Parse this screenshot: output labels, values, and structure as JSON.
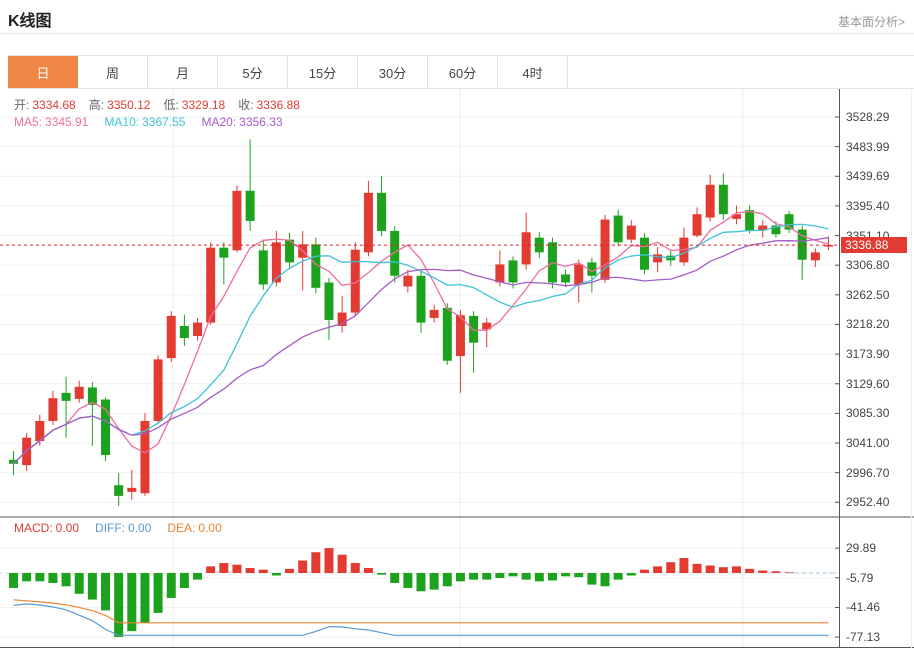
{
  "header": {
    "title": "K线图",
    "analysis_link": "基本面分析>"
  },
  "tabs": {
    "items": [
      {
        "label": "日",
        "active": true
      },
      {
        "label": "周",
        "active": false
      },
      {
        "label": "月",
        "active": false
      },
      {
        "label": "5分",
        "active": false
      },
      {
        "label": "15分",
        "active": false
      },
      {
        "label": "30分",
        "active": false
      },
      {
        "label": "60分",
        "active": false
      },
      {
        "label": "4时",
        "active": false
      }
    ]
  },
  "quote_bar": {
    "open_label": "开:",
    "open": "3334.68",
    "high_label": "高:",
    "high": "3350.12",
    "low_label": "低:",
    "low": "3329.18",
    "close_label": "收:",
    "close": "3336.88"
  },
  "ma_bar": {
    "ma5_label": "MA5:",
    "ma5": "3345.91",
    "ma10_label": "MA10:",
    "ma10": "3367.55",
    "ma20_label": "MA20:",
    "ma20": "3356.33"
  },
  "macd_bar": {
    "macd_label": "MACD:",
    "macd": "0.00",
    "diff_label": "DIFF:",
    "diff": "0.00",
    "dea_label": "DEA:",
    "dea": "0.00"
  },
  "colors": {
    "up": "#e23b32",
    "down": "#1ca21c",
    "ma5": "#ee6e9e",
    "ma10": "#3fc3d8",
    "ma20": "#a55cc5",
    "diff": "#5a9ad2",
    "dea": "#ef8432",
    "accent_tab": "#ee8745",
    "current_price_line": "#e02020",
    "grid": "#f1f1f1",
    "axis": "#555"
  },
  "chart_data": {
    "type": "candlestick+macd",
    "grid": true,
    "legend_position": "top-left",
    "price_axis": {
      "tick_labels": [
        "3528.29",
        "3483.99",
        "3439.69",
        "3395.40",
        "3351.10",
        "3306.80",
        "3262.50",
        "3218.20",
        "3173.90",
        "3129.60",
        "3085.30",
        "3041.00",
        "2996.70",
        "2952.40"
      ],
      "range": [
        2952.4,
        3528.29
      ],
      "current_price": 3336.88,
      "current_price_label": "3336.88"
    },
    "ma_periods": [
      5,
      10,
      20
    ],
    "candles_ohlc": [
      [
        3016,
        3029,
        2993,
        3010
      ],
      [
        3008,
        3056,
        2999,
        3049
      ],
      [
        3044,
        3083,
        3037,
        3074
      ],
      [
        3074,
        3119,
        3068,
        3108
      ],
      [
        3116,
        3140,
        3049,
        3104
      ],
      [
        3107,
        3134,
        3101,
        3125
      ],
      [
        3124,
        3132,
        3037,
        3098
      ],
      [
        3106,
        3109,
        3014,
        3023
      ],
      [
        2978,
        2996,
        2947,
        2962
      ],
      [
        2968,
        3001,
        2956,
        2974
      ],
      [
        2966,
        3086,
        2962,
        3074
      ],
      [
        3074,
        3172,
        3070,
        3166
      ],
      [
        3168,
        3238,
        3162,
        3231
      ],
      [
        3216,
        3233,
        3186,
        3198
      ],
      [
        3201,
        3228,
        3194,
        3221
      ],
      [
        3221,
        3341,
        3218,
        3333
      ],
      [
        3333,
        3341,
        3278,
        3318
      ],
      [
        3329,
        3426,
        3326,
        3418
      ],
      [
        3418,
        3495,
        3358,
        3373
      ],
      [
        3329,
        3345,
        3270,
        3278
      ],
      [
        3281,
        3358,
        3275,
        3341
      ],
      [
        3345,
        3355,
        3304,
        3311
      ],
      [
        3318,
        3358,
        3269,
        3338
      ],
      [
        3338,
        3348,
        3265,
        3273
      ],
      [
        3281,
        3288,
        3195,
        3225
      ],
      [
        3216,
        3261,
        3206,
        3236
      ],
      [
        3236,
        3341,
        3230,
        3330
      ],
      [
        3326,
        3433,
        3320,
        3415
      ],
      [
        3415,
        3440,
        3350,
        3358
      ],
      [
        3358,
        3365,
        3281,
        3291
      ],
      [
        3275,
        3300,
        3266,
        3291
      ],
      [
        3291,
        3298,
        3206,
        3221
      ],
      [
        3228,
        3248,
        3221,
        3240
      ],
      [
        3243,
        3250,
        3158,
        3164
      ],
      [
        3171,
        3240,
        3116,
        3232
      ],
      [
        3231,
        3238,
        3146,
        3191
      ],
      [
        3211,
        3228,
        3184,
        3221
      ],
      [
        3281,
        3329,
        3275,
        3308
      ],
      [
        3314,
        3320,
        3272,
        3281
      ],
      [
        3308,
        3385,
        3300,
        3356
      ],
      [
        3348,
        3356,
        3318,
        3326
      ],
      [
        3341,
        3348,
        3272,
        3281
      ],
      [
        3293,
        3300,
        3274,
        3281
      ],
      [
        3278,
        3315,
        3251,
        3308
      ],
      [
        3311,
        3318,
        3266,
        3291
      ],
      [
        3285,
        3382,
        3280,
        3375
      ],
      [
        3381,
        3390,
        3335,
        3341
      ],
      [
        3345,
        3374,
        3340,
        3366
      ],
      [
        3348,
        3355,
        3293,
        3300
      ],
      [
        3311,
        3334,
        3296,
        3323
      ],
      [
        3321,
        3330,
        3306,
        3314
      ],
      [
        3311,
        3363,
        3306,
        3348
      ],
      [
        3351,
        3393,
        3348,
        3383
      ],
      [
        3378,
        3442,
        3372,
        3427
      ],
      [
        3427,
        3444,
        3375,
        3383
      ],
      [
        3376,
        3396,
        3368,
        3383
      ],
      [
        3389,
        3396,
        3354,
        3359
      ],
      [
        3359,
        3374,
        3348,
        3366
      ],
      [
        3366,
        3372,
        3348,
        3353
      ],
      [
        3383,
        3388,
        3355,
        3360
      ],
      [
        3360,
        3366,
        3285,
        3315
      ],
      [
        3314,
        3332,
        3304,
        3326
      ],
      [
        3334.68,
        3350.12,
        3329.18,
        3336.88
      ]
    ],
    "macd": {
      "tick_labels": [
        "29.89",
        "-5.79",
        "-41.46",
        "-77.13"
      ],
      "histogram": [
        -18,
        -10,
        -10,
        -12,
        -16,
        -25,
        -32,
        -45,
        -77,
        -70,
        -60,
        -48,
        -30,
        -18,
        -8,
        8,
        12,
        10,
        6,
        4,
        -3,
        5,
        15,
        25,
        30,
        22,
        12,
        6,
        -2,
        -12,
        -18,
        -22,
        -20,
        -16,
        -10,
        -8,
        -8,
        -6,
        -4,
        -8,
        -10,
        -9,
        -4,
        -5,
        -14,
        -16,
        -8,
        -3,
        4,
        8,
        13,
        18,
        11,
        9,
        7,
        8,
        5,
        3,
        2,
        1,
        0,
        0,
        0
      ]
    }
  }
}
